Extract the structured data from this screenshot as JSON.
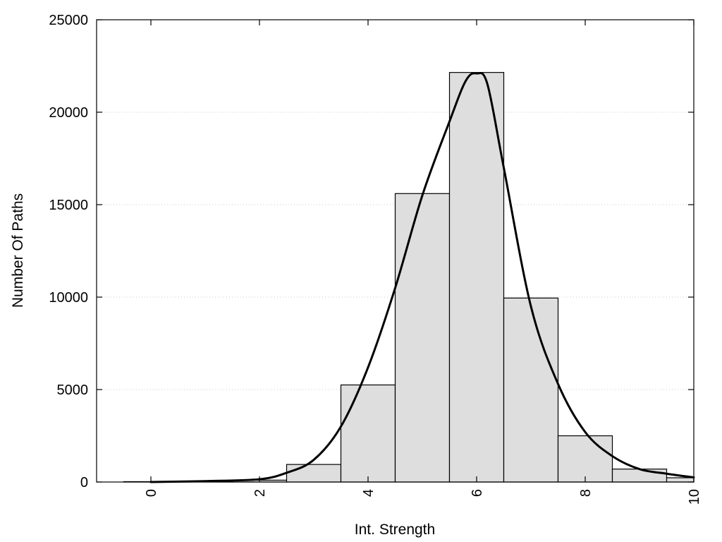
{
  "chart_data": {
    "type": "bar",
    "title": "",
    "xlabel": "Int. Strength",
    "ylabel": "Number Of Paths",
    "xlim": [
      -1,
      10
    ],
    "ylim": [
      0,
      25000
    ],
    "xticks": [
      0,
      2,
      4,
      6,
      8,
      10
    ],
    "yticks": [
      0,
      5000,
      10000,
      15000,
      20000,
      25000
    ],
    "grid": "horizontal dotted",
    "legend": "none",
    "bars": {
      "centers": [
        0,
        1,
        2,
        3,
        4,
        5,
        6,
        7,
        8,
        9,
        10
      ],
      "values": [
        20,
        40,
        100,
        950,
        5250,
        15600,
        22150,
        9950,
        2500,
        700,
        230
      ]
    },
    "curve": {
      "x": [
        0,
        1,
        2,
        2.5,
        3,
        3.5,
        4,
        4.5,
        5,
        5.5,
        5.8,
        6,
        6.2,
        6.5,
        7,
        7.5,
        8,
        8.5,
        9,
        9.5,
        10
      ],
      "y": [
        0,
        50,
        150,
        500,
        1200,
        3000,
        6200,
        10500,
        15500,
        19500,
        21700,
        22100,
        21500,
        17000,
        9500,
        5300,
        2700,
        1400,
        700,
        450,
        250
      ]
    },
    "colors": {
      "bar_fill": "#dedede",
      "bar_edge": "#000000",
      "curve": "#000000"
    }
  }
}
